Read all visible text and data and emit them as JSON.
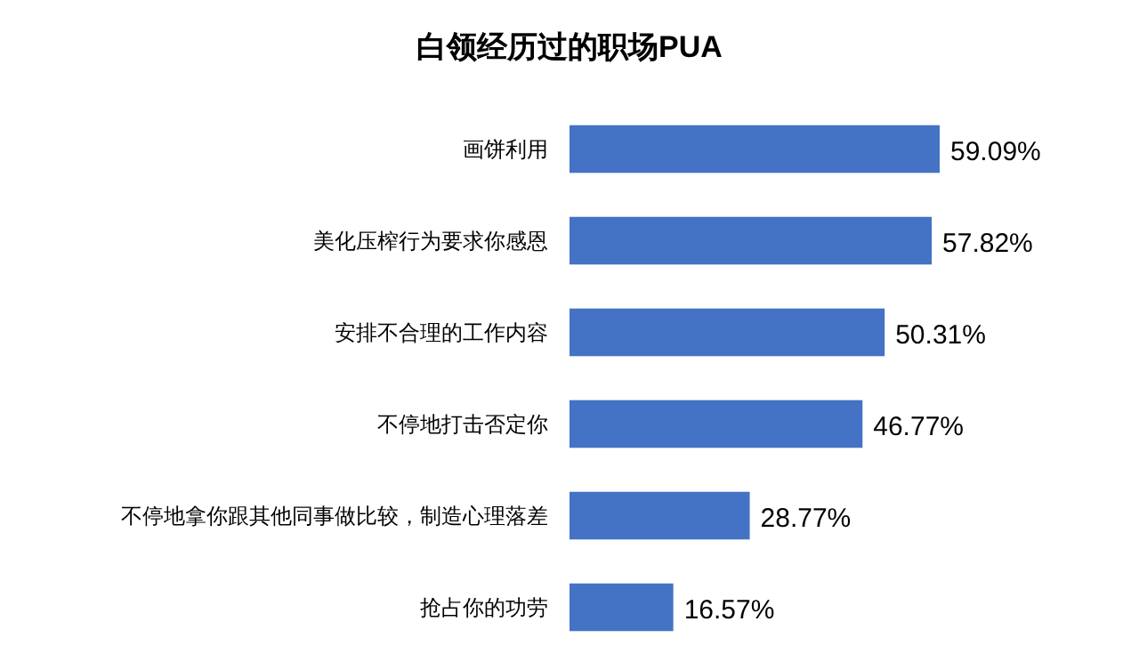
{
  "chart_data": {
    "type": "bar",
    "orientation": "horizontal",
    "title": "白领经历过的职场PUA",
    "categories": [
      "画饼利用",
      "美化压榨行为要求你感恩",
      "安排不合理的工作内容",
      "不停地打击否定你",
      "不停地拿你跟其他同事做比较，制造心理落差",
      "抢占你的功劳"
    ],
    "values": [
      59.09,
      57.82,
      50.31,
      46.77,
      28.77,
      16.57
    ],
    "value_labels": [
      "59.09%",
      "57.82%",
      "50.31%",
      "46.77%",
      "28.77%",
      "16.57%"
    ],
    "color": "#4472c4"
  }
}
